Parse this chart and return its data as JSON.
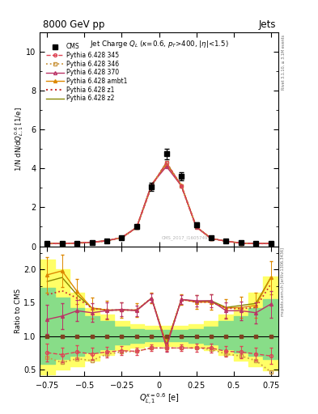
{
  "title_top": "8000 GeV pp",
  "title_right": "Jets",
  "plot_title": "Jet Charge $Q_L$ ($\\kappa$=0.6, $p_T$>400, $|\\eta|$<1.5)",
  "ylabel_main": "1/N dN/d$Q_{L,1}^{0.6}$ [1/e]",
  "ylabel_ratio": "Ratio to CMS",
  "xlabel": "$Q_{L,1}^{\\kappa=0.6}$ [e]",
  "watermark": "CMS_2017_I1605749",
  "rivet_text": "Rivet 3.1.10, ≥ 3.1M events",
  "arxiv_text": "mcplots.cern.ch [arXiv:1306.3436]",
  "ylim_main": [
    0,
    11
  ],
  "ylim_ratio": [
    0.4,
    2.35
  ],
  "xlim": [
    -0.8,
    0.8
  ],
  "color_345": "#dd4455",
  "color_346": "#cc9944",
  "color_370": "#bb3366",
  "color_ambt1": "#dd8800",
  "color_z1": "#cc3333",
  "color_z2": "#888800",
  "x_pts": [
    -0.75,
    -0.65,
    -0.55,
    -0.45,
    -0.35,
    -0.25,
    -0.15,
    -0.05,
    0.05,
    0.15,
    0.25,
    0.35,
    0.45,
    0.55,
    0.65,
    0.75
  ],
  "cms_y": [
    0.14,
    0.14,
    0.16,
    0.2,
    0.28,
    0.45,
    1.0,
    3.05,
    4.75,
    3.6,
    1.1,
    0.45,
    0.28,
    0.18,
    0.14,
    0.14
  ],
  "cms_yerr": [
    0.02,
    0.02,
    0.02,
    0.03,
    0.04,
    0.06,
    0.12,
    0.22,
    0.28,
    0.22,
    0.12,
    0.06,
    0.04,
    0.03,
    0.02,
    0.02
  ],
  "p345_y": [
    0.14,
    0.14,
    0.16,
    0.2,
    0.28,
    0.44,
    0.96,
    3.1,
    4.3,
    3.1,
    1.0,
    0.4,
    0.26,
    0.16,
    0.14,
    0.14
  ],
  "p346_y": [
    0.14,
    0.14,
    0.16,
    0.2,
    0.28,
    0.44,
    0.96,
    3.1,
    4.3,
    3.1,
    1.0,
    0.4,
    0.26,
    0.16,
    0.14,
    0.14
  ],
  "p370_y": [
    0.14,
    0.14,
    0.17,
    0.21,
    0.29,
    0.45,
    0.97,
    3.18,
    4.1,
    3.1,
    0.98,
    0.4,
    0.26,
    0.16,
    0.14,
    0.14
  ],
  "pambt1_y": [
    0.14,
    0.14,
    0.17,
    0.21,
    0.29,
    0.45,
    0.97,
    3.18,
    4.2,
    3.15,
    0.99,
    0.4,
    0.26,
    0.16,
    0.14,
    0.14
  ],
  "pz1_y": [
    0.14,
    0.14,
    0.16,
    0.2,
    0.28,
    0.44,
    0.96,
    3.1,
    4.3,
    3.1,
    1.0,
    0.4,
    0.26,
    0.16,
    0.14,
    0.14
  ],
  "pz2_y": [
    0.14,
    0.14,
    0.16,
    0.2,
    0.28,
    0.44,
    0.96,
    3.1,
    4.3,
    3.1,
    1.0,
    0.4,
    0.26,
    0.16,
    0.14,
    0.14
  ],
  "r345": [
    0.75,
    0.72,
    0.76,
    0.73,
    0.76,
    0.78,
    0.77,
    0.82,
    0.82,
    0.82,
    0.82,
    0.82,
    0.77,
    0.76,
    0.73,
    0.7
  ],
  "r346": [
    0.68,
    0.6,
    0.66,
    0.63,
    0.73,
    0.76,
    0.77,
    0.82,
    0.82,
    0.82,
    0.82,
    0.8,
    0.73,
    0.7,
    0.63,
    0.46
  ],
  "r370": [
    1.25,
    1.3,
    1.38,
    1.35,
    1.38,
    1.4,
    1.38,
    1.57,
    0.83,
    1.55,
    1.53,
    1.53,
    1.38,
    1.38,
    1.35,
    1.48
  ],
  "rambt1": [
    1.92,
    1.98,
    1.67,
    1.42,
    1.39,
    1.39,
    1.39,
    1.57,
    0.88,
    1.55,
    1.51,
    1.51,
    1.42,
    1.43,
    1.46,
    1.88
  ],
  "rz1": [
    1.62,
    1.68,
    1.57,
    1.42,
    1.39,
    1.39,
    1.39,
    1.57,
    0.85,
    1.55,
    1.51,
    1.51,
    1.42,
    1.41,
    1.43,
    1.78
  ],
  "rz2": [
    1.82,
    1.88,
    1.62,
    1.42,
    1.39,
    1.39,
    1.39,
    1.57,
    0.87,
    1.55,
    1.52,
    1.53,
    1.43,
    1.46,
    1.49,
    1.88
  ],
  "r345_err": [
    0.13,
    0.11,
    0.1,
    0.09,
    0.08,
    0.07,
    0.06,
    0.05,
    0.05,
    0.05,
    0.06,
    0.07,
    0.08,
    0.09,
    0.1,
    0.12
  ],
  "r370_err": [
    0.22,
    0.19,
    0.16,
    0.14,
    0.12,
    0.1,
    0.08,
    0.07,
    0.07,
    0.07,
    0.08,
    0.1,
    0.12,
    0.14,
    0.16,
    0.2
  ],
  "rambt1_err": [
    0.27,
    0.24,
    0.19,
    0.16,
    0.14,
    0.12,
    0.1,
    0.08,
    0.08,
    0.08,
    0.1,
    0.12,
    0.14,
    0.16,
    0.19,
    0.25
  ],
  "band_edges": [
    -0.8,
    -0.7,
    -0.6,
    -0.5,
    -0.4,
    -0.3,
    -0.2,
    -0.1,
    0.0,
    0.1,
    0.2,
    0.3,
    0.4,
    0.5,
    0.6,
    0.7,
    0.8
  ],
  "yellow_lo": [
    0.42,
    0.5,
    0.55,
    0.63,
    0.71,
    0.79,
    0.82,
    0.85,
    0.85,
    0.85,
    0.82,
    0.79,
    0.71,
    0.63,
    0.55,
    0.48,
    0.42
  ],
  "yellow_hi": [
    2.15,
    2.0,
    1.65,
    1.42,
    1.32,
    1.22,
    1.18,
    1.15,
    1.15,
    1.15,
    1.18,
    1.22,
    1.32,
    1.42,
    1.65,
    1.9,
    2.1
  ],
  "green_lo": [
    0.58,
    0.65,
    0.7,
    0.75,
    0.8,
    0.87,
    0.9,
    0.92,
    0.92,
    0.92,
    0.9,
    0.87,
    0.8,
    0.75,
    0.7,
    0.65,
    0.58
  ],
  "green_hi": [
    1.72,
    1.58,
    1.42,
    1.3,
    1.23,
    1.14,
    1.11,
    1.09,
    1.09,
    1.09,
    1.11,
    1.14,
    1.23,
    1.3,
    1.42,
    1.55,
    1.65
  ]
}
